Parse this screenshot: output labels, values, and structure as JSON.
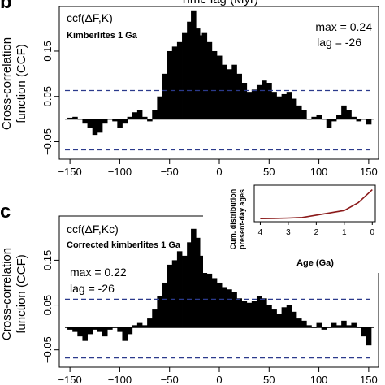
{
  "colors": {
    "ccf_fill": "#000000",
    "threshold_line": "#2b3a8c",
    "inset_line": "#8b1a1a",
    "axis": "#000000"
  },
  "header": {
    "top_label": "Time lag (Myr)"
  },
  "chart_data": [
    {
      "panel": "b",
      "type": "area",
      "title": "ccf(ΔF,K)",
      "subtitle": "Kimberlites 1 Ga",
      "ylabel_line1": "Cross-correlation",
      "ylabel_line2": "function (CCF)",
      "xlim": [
        -155,
        155
      ],
      "ylim": [
        -0.085,
        0.245
      ],
      "xticks": [
        -150,
        -100,
        -50,
        0,
        50,
        100,
        150
      ],
      "yticks": [
        -0.05,
        0.05,
        0.15
      ],
      "ytick_labels": [
        "−0.05",
        "0.05",
        "0.15"
      ],
      "thresholds": [
        0.063,
        -0.068
      ],
      "max_text": "max = 0.24",
      "lag_text": "lag = -26",
      "x": [
        -150,
        -145,
        -140,
        -135,
        -130,
        -125,
        -120,
        -115,
        -110,
        -105,
        -100,
        -95,
        -90,
        -85,
        -80,
        -75,
        -70,
        -65,
        -60,
        -55,
        -50,
        -45,
        -40,
        -35,
        -30,
        -26,
        -22,
        -18,
        -15,
        -10,
        -5,
        0,
        5,
        10,
        15,
        20,
        25,
        30,
        35,
        40,
        45,
        50,
        55,
        60,
        65,
        70,
        75,
        80,
        85,
        90,
        95,
        100,
        105,
        110,
        115,
        120,
        125,
        130,
        135,
        140,
        145,
        150
      ],
      "y": [
        0.003,
        0.005,
        0.0,
        -0.01,
        -0.02,
        -0.035,
        -0.03,
        -0.01,
        0.0,
        -0.005,
        -0.02,
        -0.01,
        0.005,
        0.015,
        0.02,
        0.005,
        -0.005,
        0.02,
        0.05,
        0.1,
        0.15,
        0.16,
        0.17,
        0.19,
        0.215,
        0.24,
        0.2,
        0.185,
        0.19,
        0.17,
        0.15,
        0.14,
        0.12,
        0.11,
        0.12,
        0.1,
        0.08,
        0.06,
        0.065,
        0.075,
        0.085,
        0.08,
        0.06,
        0.05,
        0.055,
        0.06,
        0.045,
        0.03,
        0.02,
        0.0,
        0.005,
        0.01,
        0.0,
        -0.02,
        -0.005,
        0.01,
        0.03,
        0.02,
        0.005,
        -0.005,
        0.0,
        -0.012
      ]
    },
    {
      "panel": "c",
      "type": "area",
      "title": "ccf(ΔF,Kc)",
      "subtitle": "Corrected kimberlites 1 Ga",
      "ylabel_line1": "Cross-correlation",
      "ylabel_line2": "function (CCF)",
      "xlim": [
        -155,
        155
      ],
      "ylim": [
        -0.085,
        0.245
      ],
      "xticks": [
        -150,
        -100,
        -50,
        0,
        50,
        100,
        150
      ],
      "yticks": [
        -0.05,
        0.05,
        0.15
      ],
      "ytick_labels": [
        "−0.05",
        "0.05",
        "0.15"
      ],
      "thresholds": [
        0.063,
        -0.068
      ],
      "max_text": "max = 0.22",
      "lag_text": "lag = -26",
      "x": [
        -150,
        -145,
        -140,
        -135,
        -130,
        -125,
        -120,
        -115,
        -110,
        -105,
        -100,
        -95,
        -90,
        -85,
        -80,
        -75,
        -70,
        -65,
        -60,
        -55,
        -50,
        -45,
        -40,
        -35,
        -30,
        -26,
        -22,
        -18,
        -15,
        -10,
        -5,
        0,
        5,
        10,
        15,
        20,
        25,
        30,
        35,
        40,
        45,
        50,
        55,
        60,
        65,
        70,
        75,
        80,
        85,
        90,
        95,
        100,
        105,
        110,
        115,
        120,
        125,
        130,
        135,
        140,
        145,
        150
      ],
      "y": [
        -0.005,
        -0.01,
        -0.02,
        -0.03,
        -0.015,
        -0.005,
        -0.01,
        -0.02,
        -0.005,
        0.0,
        -0.01,
        -0.03,
        -0.015,
        0.005,
        0.01,
        0.005,
        0.02,
        0.04,
        0.07,
        0.1,
        0.14,
        0.15,
        0.17,
        0.16,
        0.19,
        0.22,
        0.2,
        0.16,
        0.14,
        0.12,
        0.11,
        0.1,
        0.09,
        0.085,
        0.08,
        0.065,
        0.06,
        0.055,
        0.06,
        0.07,
        0.065,
        0.05,
        0.04,
        0.03,
        0.045,
        0.05,
        0.035,
        0.02,
        0.015,
        0.005,
        0.0,
        0.01,
        -0.005,
        0.0,
        0.01,
        0.005,
        0.015,
        0.005,
        0.01,
        0.0,
        -0.02,
        -0.04
      ]
    },
    {
      "panel": "c-inset",
      "type": "line",
      "ylabel_line1": "Cum. distribution",
      "ylabel_line2": "present-day ages",
      "xlabel": "Age (Ga)",
      "xlim": [
        4.1,
        -0.05
      ],
      "ylim": [
        -0.05,
        1.1
      ],
      "xticks": [
        4,
        3,
        2,
        1,
        0
      ],
      "x": [
        4.0,
        3.5,
        3.0,
        2.5,
        2.0,
        1.5,
        1.0,
        0.5,
        0.0
      ],
      "y": [
        0.0,
        0.01,
        0.02,
        0.04,
        0.12,
        0.2,
        0.28,
        0.55,
        1.0
      ]
    }
  ]
}
